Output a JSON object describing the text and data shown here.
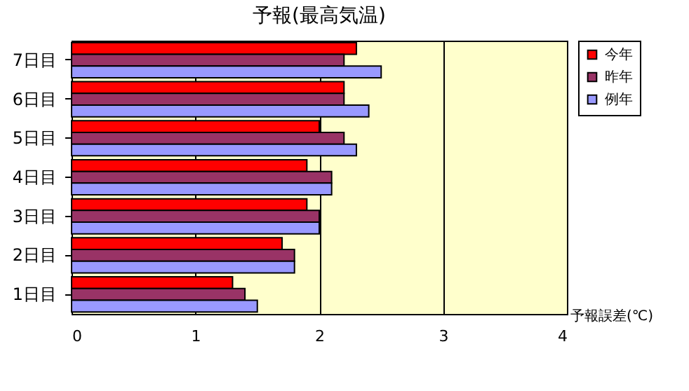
{
  "chart_data": {
    "type": "bar",
    "orientation": "horizontal",
    "title": "予報(最高気温)",
    "xlabel": "予報誤差(℃)",
    "categories": [
      "7日目",
      "6日目",
      "5日目",
      "4日目",
      "3日目",
      "2日目",
      "1日目"
    ],
    "series": [
      {
        "name": "今年",
        "color": "#ff0000",
        "values": [
          2.3,
          2.2,
          2.0,
          1.9,
          1.9,
          1.7,
          1.3
        ]
      },
      {
        "name": "昨年",
        "color": "#993366",
        "values": [
          2.2,
          2.2,
          2.2,
          2.1,
          2.0,
          1.8,
          1.4
        ]
      },
      {
        "name": "例年",
        "color": "#9999ff",
        "values": [
          2.5,
          2.4,
          2.3,
          2.1,
          2.0,
          1.8,
          1.5
        ]
      }
    ],
    "xlim": [
      0,
      4
    ],
    "xticks": [
      0,
      1,
      2,
      3,
      4
    ],
    "grid": "x",
    "legend": "top right"
  }
}
